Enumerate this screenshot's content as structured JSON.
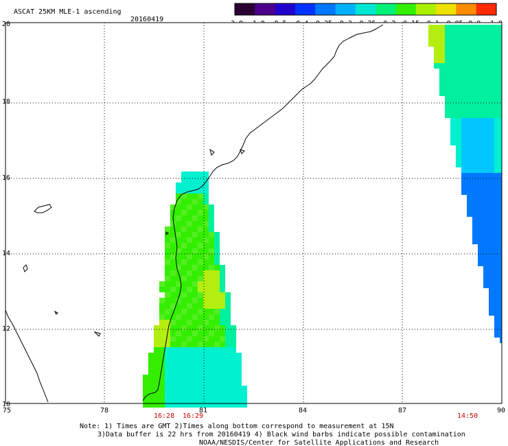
{
  "header": {
    "product": "ASCAT 25KM MLE-1 ascending",
    "date": "20160419"
  },
  "colorbar": {
    "labels": [
      "-3.0",
      "-1.0",
      "-0.5",
      "-0.4",
      "-0.35",
      "-0.3",
      "-0.25",
      "-0.2",
      "-0.15",
      "-0.1",
      "-0.05",
      "0.0",
      "1.0"
    ],
    "colors": [
      "#2a0033",
      "#4b008c",
      "#2200cc",
      "#0033ff",
      "#0077ff",
      "#00b0ff",
      "#00e6d2",
      "#00f07a",
      "#33f000",
      "#aaf000",
      "#eee000",
      "#ff8c00",
      "#ff2a00"
    ]
  },
  "map": {
    "lon_range": [
      75,
      90
    ],
    "lat_range": [
      10,
      20
    ],
    "x_ticks": [
      "75",
      "78",
      "81",
      "84",
      "87",
      "90"
    ],
    "y_ticks": [
      "10",
      "12",
      "14",
      "16",
      "18",
      "20"
    ],
    "time_labels": [
      "16:28",
      "16:29",
      "14:50"
    ]
  },
  "notes": {
    "line1": "Note: 1) Times are GMT 2)Times along bottom correspond to measurement at 15N",
    "line2": "3)Data buffer is 22 hrs from 20160419 4) Black wind barbs indicate possible contamination",
    "line3": "NOAA/NESDIS/Center for Satellite Applications and Research"
  },
  "swath_colors": {
    "yellow_green": "#b4ee10",
    "green": "#33ee00",
    "lime": "#55ee22",
    "aqua_green": "#00f0a0",
    "cyan": "#00f0d0",
    "blue_cyan": "#00c8ff",
    "blue": "#0078ff"
  }
}
